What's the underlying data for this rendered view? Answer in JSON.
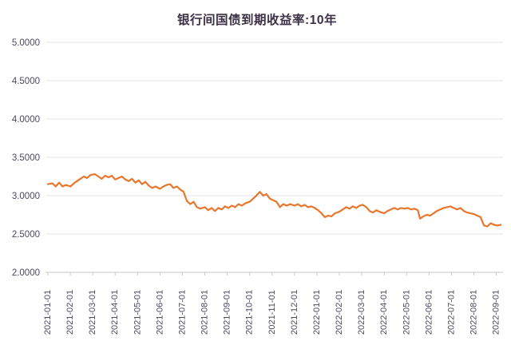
{
  "title": "银行间国债到期收益率:10年",
  "colors": {
    "line": "#E8772E",
    "title_text": "#3D3145",
    "axis_text": "#4C4A5E",
    "gridline": "#E3E3EB",
    "axis_line": "#C7C7D2",
    "background": "#FFFFFF"
  },
  "chart_data": {
    "type": "line",
    "title": "银行间国债到期收益率:10年",
    "xlabel": "",
    "ylabel": "",
    "legend": "none",
    "grid": "horizontal",
    "ylim": [
      2.0,
      5.0
    ],
    "y_ticks": [
      2.0,
      2.5,
      3.0,
      3.5,
      4.0,
      4.5,
      5.0
    ],
    "y_tick_labels": [
      "2.0000",
      "2.5000",
      "3.0000",
      "3.5000",
      "4.0000",
      "4.5000",
      "5.0000"
    ],
    "x_tick_labels": [
      "2021-01-01",
      "2021-02-01",
      "2021-03-01",
      "2021-04-01",
      "2021-05-01",
      "2021-06-01",
      "2021-07-01",
      "2021-08-01",
      "2021-09-01",
      "2021-10-01",
      "2021-11-01",
      "2021-12-01",
      "2022-01-01",
      "2022-02-01",
      "2022-03-01",
      "2022-04-01",
      "2022-05-01",
      "2022-06-01",
      "2022-07-01",
      "2022-08-01",
      "2022-09-01"
    ],
    "series": [
      {
        "name": "银行间国债到期收益率:10年",
        "x_months": [
          0,
          0.2,
          0.35,
          0.5,
          0.65,
          0.8,
          1.0,
          1.2,
          1.4,
          1.6,
          1.75,
          1.9,
          2.1,
          2.25,
          2.4,
          2.55,
          2.7,
          2.85,
          3.0,
          3.15,
          3.3,
          3.45,
          3.6,
          3.75,
          3.9,
          4.05,
          4.2,
          4.35,
          4.5,
          4.65,
          4.8,
          5.0,
          5.15,
          5.3,
          5.45,
          5.6,
          5.75,
          5.9,
          6.05,
          6.2,
          6.35,
          6.5,
          6.65,
          6.8,
          7.0,
          7.15,
          7.3,
          7.45,
          7.6,
          7.75,
          7.9,
          8.05,
          8.2,
          8.35,
          8.5,
          8.65,
          8.8,
          9.0,
          9.15,
          9.3,
          9.45,
          9.6,
          9.75,
          9.9,
          10.05,
          10.2,
          10.35,
          10.5,
          10.65,
          10.8,
          11.0,
          11.15,
          11.3,
          11.45,
          11.6,
          11.75,
          11.9,
          12.05,
          12.2,
          12.35,
          12.5,
          12.65,
          12.8,
          13.0,
          13.15,
          13.3,
          13.45,
          13.6,
          13.75,
          13.9,
          14.05,
          14.2,
          14.35,
          14.5,
          14.65,
          14.8,
          15.0,
          15.15,
          15.3,
          15.45,
          15.6,
          15.75,
          15.9,
          16.05,
          16.2,
          16.35,
          16.5,
          16.6,
          16.75,
          16.9,
          17.05,
          17.2,
          17.35,
          17.5,
          17.65,
          17.8,
          17.95,
          18.1,
          18.25,
          18.4,
          18.55,
          18.7,
          18.85,
          19.0,
          19.15,
          19.3,
          19.45,
          19.6,
          19.75,
          19.9,
          20.05,
          20.2
        ],
        "values": [
          3.15,
          3.16,
          3.12,
          3.17,
          3.12,
          3.14,
          3.12,
          3.17,
          3.21,
          3.25,
          3.23,
          3.27,
          3.28,
          3.25,
          3.22,
          3.26,
          3.24,
          3.26,
          3.21,
          3.23,
          3.25,
          3.21,
          3.19,
          3.22,
          3.17,
          3.2,
          3.15,
          3.18,
          3.13,
          3.1,
          3.12,
          3.09,
          3.12,
          3.14,
          3.15,
          3.1,
          3.12,
          3.08,
          3.05,
          2.93,
          2.89,
          2.92,
          2.85,
          2.83,
          2.85,
          2.81,
          2.84,
          2.8,
          2.84,
          2.82,
          2.86,
          2.84,
          2.87,
          2.85,
          2.89,
          2.87,
          2.9,
          2.92,
          2.96,
          3.0,
          3.05,
          3.0,
          3.02,
          2.96,
          2.94,
          2.92,
          2.85,
          2.89,
          2.87,
          2.89,
          2.87,
          2.89,
          2.86,
          2.88,
          2.85,
          2.86,
          2.84,
          2.81,
          2.77,
          2.72,
          2.74,
          2.73,
          2.77,
          2.79,
          2.82,
          2.85,
          2.83,
          2.86,
          2.84,
          2.87,
          2.88,
          2.85,
          2.8,
          2.78,
          2.81,
          2.79,
          2.77,
          2.8,
          2.82,
          2.84,
          2.82,
          2.84,
          2.83,
          2.84,
          2.82,
          2.83,
          2.81,
          2.7,
          2.73,
          2.75,
          2.74,
          2.77,
          2.8,
          2.82,
          2.84,
          2.85,
          2.86,
          2.84,
          2.82,
          2.84,
          2.8,
          2.78,
          2.77,
          2.76,
          2.74,
          2.72,
          2.61,
          2.6,
          2.64,
          2.62,
          2.61,
          2.62
        ]
      }
    ]
  }
}
